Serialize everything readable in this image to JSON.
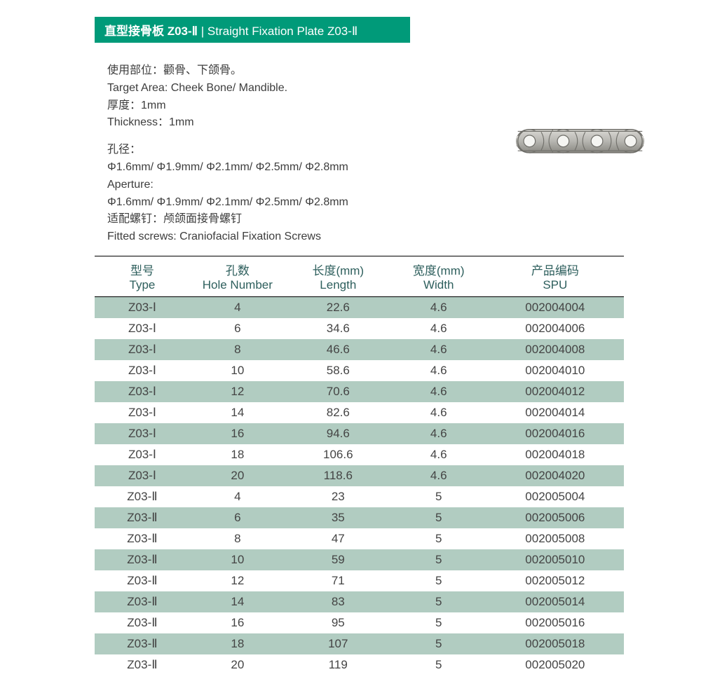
{
  "header": {
    "title_cn": "直型接骨板 Z03-Ⅱ",
    "sep": " | ",
    "title_en": "Straight Fixation Plate Z03-Ⅱ"
  },
  "info": {
    "target_cn": "使用部位：颧骨、下颌骨。",
    "target_en": "Target Area: Cheek Bone/ Mandible.",
    "thickness_cn": "厚度：1mm",
    "thickness_en": "Thickness：1mm",
    "aperture_label_cn": "孔径：",
    "aperture_values_cn": "Φ1.6mm/ Φ1.9mm/ Φ2.1mm/ Φ2.5mm/ Φ2.8mm",
    "aperture_label_en": "Aperture:",
    "aperture_values_en": "Φ1.6mm/ Φ1.9mm/ Φ2.1mm/ Φ2.5mm/ Φ2.8mm",
    "screws_cn": "适配螺钉：颅颌面接骨螺钉",
    "screws_en": "Fitted screws: Craniofacial Fixation Screws"
  },
  "plate_svg": {
    "hole_color": "#f5f5f2",
    "body_color": "#b7b6b1",
    "outline_color": "#6f6e69"
  },
  "columns": {
    "type_cn": "型号",
    "type_en": "Type",
    "holes_cn": "孔数",
    "holes_en": "Hole Number",
    "length_cn": "长度(mm)",
    "length_en": "Length",
    "width_cn": "宽度(mm)",
    "width_en": "Width",
    "spu_cn": "产品编码",
    "spu_en": "SPU"
  },
  "rows": [
    {
      "type": "Z03-Ⅰ",
      "holes": "4",
      "length": "22.6",
      "width": "4.6",
      "spu": "002004004"
    },
    {
      "type": "Z03-Ⅰ",
      "holes": "6",
      "length": "34.6",
      "width": "4.6",
      "spu": "002004006"
    },
    {
      "type": "Z03-Ⅰ",
      "holes": "8",
      "length": "46.6",
      "width": "4.6",
      "spu": "002004008"
    },
    {
      "type": "Z03-Ⅰ",
      "holes": "10",
      "length": "58.6",
      "width": "4.6",
      "spu": "002004010"
    },
    {
      "type": "Z03-Ⅰ",
      "holes": "12",
      "length": "70.6",
      "width": "4.6",
      "spu": "002004012"
    },
    {
      "type": "Z03-Ⅰ",
      "holes": "14",
      "length": "82.6",
      "width": "4.6",
      "spu": "002004014"
    },
    {
      "type": "Z03-Ⅰ",
      "holes": "16",
      "length": "94.6",
      "width": "4.6",
      "spu": "002004016"
    },
    {
      "type": "Z03-Ⅰ",
      "holes": "18",
      "length": "106.6",
      "width": "4.6",
      "spu": "002004018"
    },
    {
      "type": "Z03-Ⅰ",
      "holes": "20",
      "length": "118.6",
      "width": "4.6",
      "spu": "002004020"
    },
    {
      "type": "Z03-Ⅱ",
      "holes": "4",
      "length": "23",
      "width": "5",
      "spu": "002005004"
    },
    {
      "type": "Z03-Ⅱ",
      "holes": "6",
      "length": "35",
      "width": "5",
      "spu": "002005006"
    },
    {
      "type": "Z03-Ⅱ",
      "holes": "8",
      "length": "47",
      "width": "5",
      "spu": "002005008"
    },
    {
      "type": "Z03-Ⅱ",
      "holes": "10",
      "length": "59",
      "width": "5",
      "spu": "002005010"
    },
    {
      "type": "Z03-Ⅱ",
      "holes": "12",
      "length": "71",
      "width": "5",
      "spu": "002005012"
    },
    {
      "type": "Z03-Ⅱ",
      "holes": "14",
      "length": "83",
      "width": "5",
      "spu": "002005014"
    },
    {
      "type": "Z03-Ⅱ",
      "holes": "16",
      "length": "95",
      "width": "5",
      "spu": "002005016"
    },
    {
      "type": "Z03-Ⅱ",
      "holes": "18",
      "length": "107",
      "width": "5",
      "spu": "002005018"
    },
    {
      "type": "Z03-Ⅱ",
      "holes": "20",
      "length": "119",
      "width": "5",
      "spu": "002005020"
    }
  ],
  "table_style": {
    "odd_row_color": "#b1ccc1",
    "even_row_color": "#ffffff",
    "header_text_color": "#2e5f5d",
    "border_color": "#000000"
  }
}
